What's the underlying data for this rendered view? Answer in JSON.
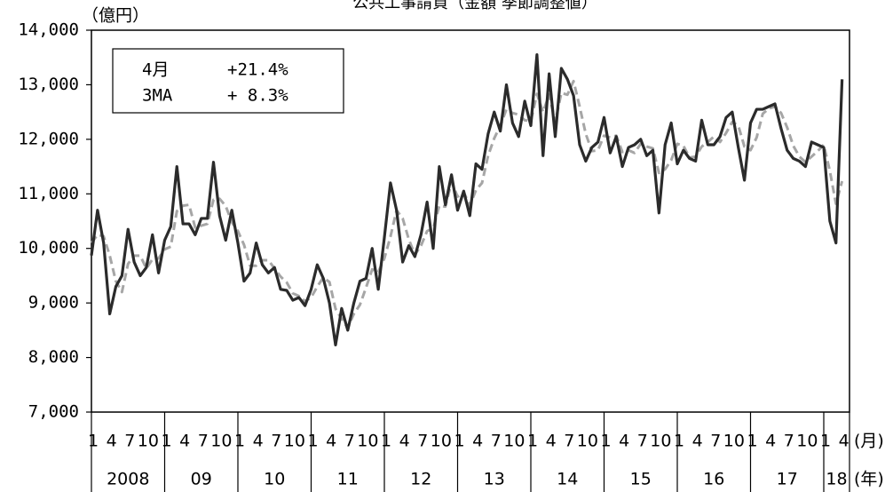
{
  "chart_data": {
    "type": "line",
    "title": "公共工事請負（金額 季節調整値）",
    "y_label": "（億円）",
    "x_unit": "(月)",
    "year_unit": "(年)",
    "categories": [
      "1",
      null,
      null,
      "4",
      null,
      null,
      "7",
      null,
      null,
      "10",
      null,
      null,
      "1",
      null,
      null,
      "4",
      null,
      null,
      "7",
      null,
      null,
      "10",
      null,
      null,
      "1",
      null,
      null,
      "4",
      null,
      null,
      "7",
      null,
      null,
      "10",
      null,
      null,
      "1",
      null,
      null,
      "4",
      null,
      null,
      "7",
      null,
      null,
      "10",
      null,
      null,
      "1",
      null,
      null,
      "4",
      null,
      null,
      "7",
      null,
      null,
      "10",
      null,
      null,
      "1",
      null,
      null,
      "4",
      null,
      null,
      "7",
      null,
      null,
      "10",
      null,
      null,
      "1",
      null,
      null,
      "4",
      null,
      null,
      "7",
      null,
      null,
      "10",
      null,
      null,
      "1",
      null,
      null,
      "4",
      null,
      null,
      "7",
      null,
      null,
      "10",
      null,
      null,
      "1",
      null,
      null,
      "4",
      null,
      null,
      "7",
      null,
      null,
      "10",
      null,
      null,
      "1",
      null,
      null,
      "4",
      null,
      null,
      "7",
      null,
      null,
      "10",
      null,
      null,
      "1",
      null,
      null,
      "4"
    ],
    "year_labels": [
      "2008",
      "09",
      "10",
      "11",
      "12",
      "13",
      "14",
      "15",
      "16",
      "17",
      "18"
    ],
    "series": [
      {
        "color": "#2b2b2b",
        "dashed": false,
        "values": [
          9870,
          10700,
          10100,
          8800,
          9300,
          9500,
          10350,
          9750,
          9500,
          9650,
          10250,
          9550,
          10150,
          10400,
          11500,
          10450,
          10450,
          10250,
          10550,
          10550,
          11580,
          10600,
          10150,
          10700,
          10100,
          9400,
          9550,
          10100,
          9700,
          9550,
          9650,
          9250,
          9230,
          9050,
          9100,
          8950,
          9250,
          9700,
          9450,
          9000,
          8230,
          8900,
          8500,
          9000,
          9400,
          9450,
          10000,
          9250,
          10200,
          11200,
          10700,
          9750,
          10050,
          9850,
          10250,
          10850,
          10000,
          11500,
          10800,
          11350,
          10700,
          11050,
          10600,
          11550,
          11450,
          12100,
          12500,
          12150,
          13000,
          12300,
          12050,
          12700,
          12250,
          13550,
          11700,
          13200,
          12050,
          13300,
          13100,
          12800,
          11900,
          11600,
          11850,
          11950,
          12400,
          11750,
          12050,
          11500,
          11850,
          11900,
          12000,
          11700,
          11800,
          10650,
          11900,
          12300,
          11550,
          11800,
          11650,
          11600,
          12350,
          11900,
          11900,
          12050,
          12400,
          12500,
          11850,
          11250,
          12300,
          12550,
          12550,
          12600,
          12650,
          12200,
          11800,
          11650,
          11600,
          11500,
          11950,
          11900,
          11850,
          10500,
          10100,
          13100
        ]
      },
      {
        "color": "#a6a6a6",
        "dashed": true,
        "values": [
          10100,
          10250,
          10223,
          9867,
          9400,
          9200,
          9717,
          9867,
          9867,
          9633,
          9800,
          9817,
          9983,
          10033,
          10683,
          10783,
          10800,
          10383,
          10417,
          10450,
          10893,
          10910,
          10777,
          10483,
          10317,
          10067,
          9683,
          9683,
          9783,
          9783,
          9633,
          9483,
          9377,
          9177,
          9127,
          9033,
          9100,
          9300,
          9467,
          9383,
          8893,
          8710,
          8543,
          8800,
          8967,
          9283,
          9617,
          9567,
          9817,
          10217,
          10700,
          10550,
          10167,
          9883,
          10050,
          10317,
          10367,
          10783,
          10767,
          11217,
          10950,
          11033,
          10783,
          11067,
          11200,
          11700,
          12017,
          12250,
          12550,
          12483,
          12450,
          12350,
          12333,
          12833,
          12500,
          12817,
          12317,
          12850,
          12817,
          13067,
          12600,
          12100,
          11783,
          11800,
          12067,
          12033,
          12067,
          11767,
          11800,
          11750,
          11917,
          11867,
          11833,
          11383,
          11450,
          11617,
          11917,
          11883,
          11667,
          11683,
          11867,
          11950,
          12050,
          11950,
          12117,
          12317,
          12250,
          11867,
          11800,
          12033,
          12467,
          12567,
          12600,
          12483,
          12217,
          11883,
          11683,
          11583,
          11683,
          11783,
          11900,
          11417,
          10817,
          11233
        ]
      }
    ],
    "ylim": [
      7000,
      14000
    ],
    "yticks": [
      {
        "value": 7000,
        "label": "7,000"
      },
      {
        "value": 8000,
        "label": "8,000"
      },
      {
        "value": 9000,
        "label": "9,000"
      },
      {
        "value": 10000,
        "label": "10,000"
      },
      {
        "value": 11000,
        "label": "11,000"
      },
      {
        "value": 12000,
        "label": "12,000"
      },
      {
        "value": 13000,
        "label": "13,000"
      },
      {
        "value": 14000,
        "label": "14,000"
      }
    ],
    "grid": false,
    "annotations": [
      {
        "label": "4月",
        "value": "+21.4%"
      },
      {
        "label": "3MA",
        "value": "+ 8.3%"
      }
    ]
  }
}
